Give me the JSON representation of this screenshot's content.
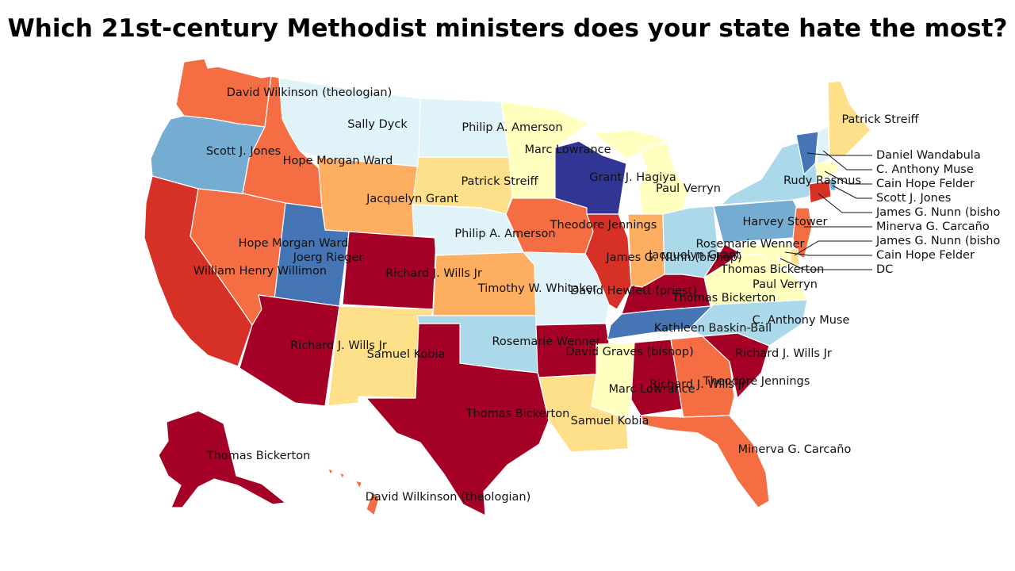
{
  "title": "Which 21st-century Methodist ministers does your state hate the most?",
  "colors": {
    "darkred": "#a50026",
    "red": "#d73027",
    "orangered": "#f46d43",
    "orange": "#fdae61",
    "lightorange": "#fee08b",
    "paleyellow": "#ffffbf",
    "verypale": "#e0f3f8",
    "lightblue": "#abd9e9",
    "blue": "#74add1",
    "midblue": "#4575b4",
    "darkblue": "#313695"
  },
  "states": [
    {
      "code": "WA",
      "label": "David Wilkinson (theologian)",
      "color": "#f46d43"
    },
    {
      "code": "OR",
      "label": "Scott J. Jones",
      "color": "#74add1"
    },
    {
      "code": "CA",
      "label": "William Henry Willimon",
      "color": "#d73027"
    },
    {
      "code": "ID",
      "label": "Hope Morgan Ward",
      "color": "#f46d43"
    },
    {
      "code": "NV",
      "label": "Hope Morgan Ward",
      "color": "#f46d43"
    },
    {
      "code": "MT",
      "label": "Sally Dyck",
      "color": "#e0f3f8"
    },
    {
      "code": "WY",
      "label": "Jacquelyn Grant",
      "color": "#fdae61"
    },
    {
      "code": "UT",
      "label": "Joerg Rieger",
      "color": "#4575b4"
    },
    {
      "code": "CO",
      "label": "Richard J. Wills Jr",
      "color": "#a50026"
    },
    {
      "code": "AZ",
      "label": "Richard J. Wills Jr",
      "color": "#a50026"
    },
    {
      "code": "NM",
      "label": "Samuel Kobia",
      "color": "#fee08b"
    },
    {
      "code": "ND",
      "label": "Philip A. Amerson",
      "color": "#e0f3f8"
    },
    {
      "code": "SD",
      "label": "Patrick Streiff",
      "color": "#fee08b"
    },
    {
      "code": "NE",
      "label": "Philip A. Amerson",
      "color": "#e0f3f8"
    },
    {
      "code": "KS",
      "label": "Timothy W. Whitaker",
      "color": "#fdae61"
    },
    {
      "code": "OK",
      "label": "Rosemarie Wenner",
      "color": "#abd9e9"
    },
    {
      "code": "TX",
      "label": "Thomas Bickerton",
      "color": "#a50026"
    },
    {
      "code": "MN",
      "label": "Marc Lowrance",
      "color": "#ffffbf"
    },
    {
      "code": "IA",
      "label": "Theodore Jennings",
      "color": "#f46d43"
    },
    {
      "code": "MO",
      "label": "David Hewlett (priest)",
      "color": "#e0f3f8"
    },
    {
      "code": "AR",
      "label": "David Graves (bishop)",
      "color": "#a50026"
    },
    {
      "code": "LA",
      "label": "Samuel Kobia",
      "color": "#fee08b"
    },
    {
      "code": "WI",
      "label": "Grant J. Hagiya",
      "color": "#313695"
    },
    {
      "code": "IL",
      "label": "James G. Nunn (bishop)",
      "color": "#d73027"
    },
    {
      "code": "MI",
      "label": "Paul Verryn",
      "color": "#ffffbf"
    },
    {
      "code": "IN",
      "label": "Jacquelyn Grant",
      "color": "#fdae61"
    },
    {
      "code": "OH",
      "label": "Rosemarie Wenner",
      "color": "#abd9e9"
    },
    {
      "code": "KY",
      "label": "Thomas Bickerton",
      "color": "#a50026"
    },
    {
      "code": "TN",
      "label": "Kathleen Baskin-Ball",
      "color": "#4575b4"
    },
    {
      "code": "MS",
      "label": "Marc Lowrance",
      "color": "#ffffbf"
    },
    {
      "code": "AL",
      "label": "Richard J. Wills Jr",
      "color": "#a50026"
    },
    {
      "code": "GA",
      "label": "Theodore Jennings",
      "color": "#f46d43"
    },
    {
      "code": "FL",
      "label": "Minerva G. Carcaño",
      "color": "#f46d43"
    },
    {
      "code": "SC",
      "label": "Richard J. Wills Jr",
      "color": "#a50026"
    },
    {
      "code": "NC",
      "label": "C. Anthony Muse",
      "color": "#abd9e9"
    },
    {
      "code": "VA",
      "label": "Paul Verryn",
      "color": "#ffffbf"
    },
    {
      "code": "WV",
      "label": "Thomas Bickerton",
      "color": "#a50026"
    },
    {
      "code": "PA",
      "label": "Harvey Stower",
      "color": "#74add1"
    },
    {
      "code": "NY",
      "label": "Rudy Rasmus",
      "color": "#abd9e9"
    },
    {
      "code": "ME",
      "label": "Patrick Streiff",
      "color": "#fee08b"
    },
    {
      "code": "VT",
      "label": "Daniel Wandabula",
      "color": "#4575b4"
    },
    {
      "code": "NH",
      "label": "C. Anthony Muse",
      "color": "#e0f3f8"
    },
    {
      "code": "MA",
      "label": "Cain Hope Felder",
      "color": "#ffffbf"
    },
    {
      "code": "RI",
      "label": "Scott J. Jones",
      "color": "#74add1"
    },
    {
      "code": "CT",
      "label": "James G. Nunn (bishop)",
      "color": "#d73027"
    },
    {
      "code": "NJ",
      "label": "Minerva G. Carcaño",
      "color": "#f46d43"
    },
    {
      "code": "DE",
      "label": "James G. Nunn (bishop)",
      "color": "#fee08b"
    },
    {
      "code": "MD",
      "label": "Cain Hope Felder",
      "color": "#ffffbf"
    },
    {
      "code": "DC",
      "label": "DC",
      "color": "#e0f3f8"
    },
    {
      "code": "AK",
      "label": "Thomas Bickerton",
      "color": "#a50026"
    },
    {
      "code": "HI",
      "label": "David Wilkinson (theologian)",
      "color": "#f46d43"
    }
  ],
  "callouts": [
    "Daniel Wandabula",
    "C. Anthony Muse",
    "Cain Hope Felder",
    "Scott J. Jones",
    "James G. Nunn (bisho",
    "Minerva G. Carcaño",
    "James G. Nunn (bisho",
    "Cain Hope Felder",
    "DC"
  ]
}
